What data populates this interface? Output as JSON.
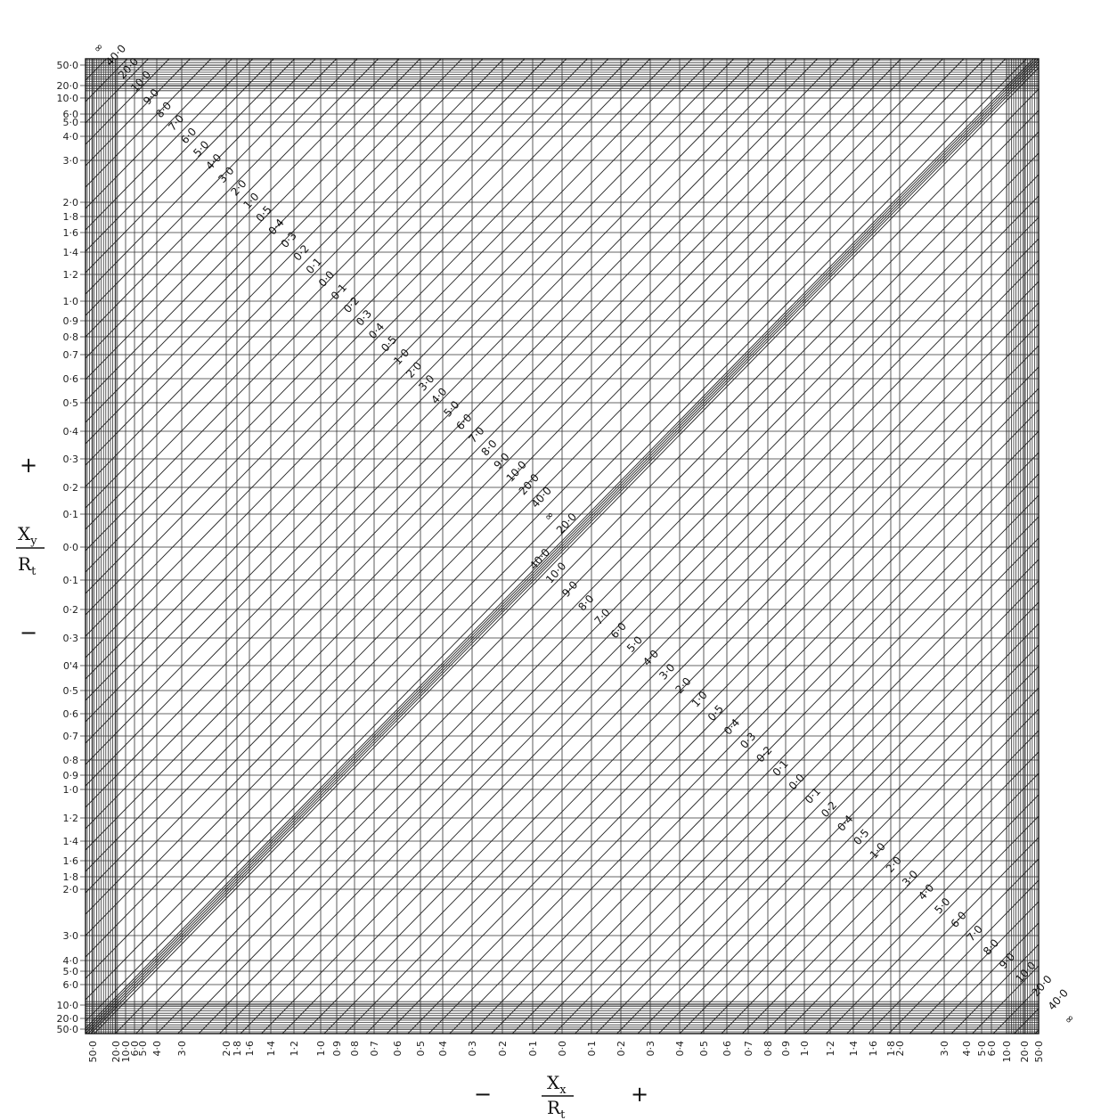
{
  "chart_data": {
    "type": "line",
    "title": "",
    "x_axis": {
      "label_symbol": "X",
      "label_subscript": "x",
      "label_denominator": "R",
      "label_denominator_subscript": "t",
      "minus_sign": "−",
      "plus_sign": "+",
      "ticks": [
        "50·0",
        "20·0",
        "10·0",
        "6·0",
        "5·0",
        "4·0",
        "3·0",
        "2·0",
        "1·8",
        "1·6",
        "1·4",
        "1·2",
        "1·0",
        "0·9",
        "0·8",
        "0·7",
        "0·6",
        "0·5",
        "0·4",
        "0·3",
        "0·2",
        "0·1",
        "0·0",
        "0·1",
        "0·2",
        "0·3",
        "0·4",
        "0·5",
        "0·6",
        "0·7",
        "0·8",
        "0·9",
        "1·0",
        "1·2",
        "1·4",
        "1·6",
        "1·8",
        "2·0",
        "3·0",
        "4·0",
        "5·0",
        "6·0",
        "10·0",
        "20·0",
        "50·0"
      ]
    },
    "y_axis": {
      "label_symbol": "X",
      "label_subscript": "y",
      "label_denominator": "R",
      "label_denominator_subscript": "t",
      "minus_sign": "−",
      "plus_sign": "+",
      "ticks": [
        "50·0",
        "20·0",
        "10·0",
        "6·0",
        "5·0",
        "4·0",
        "3·0",
        "2·0",
        "1·8",
        "1·6",
        "1·4",
        "1·2",
        "1·0",
        "0·9",
        "0·8",
        "0·7",
        "0·6",
        "0·5",
        "0'4",
        "0·3",
        "0·2",
        "0·1",
        "0·0",
        "0·1",
        "0·2",
        "0·3",
        "0·4",
        "0·5",
        "0·6",
        "0·7",
        "0·8",
        "0·9",
        "1·0",
        "1·2",
        "1·4",
        "1·6",
        "1·8",
        "2·0",
        "3·0",
        "4·0",
        "5·0",
        "6·0",
        "10·0",
        "20·0",
        "50·0"
      ]
    },
    "curve_labels_upper": [
      "∞",
      "40·0",
      "20·0",
      "10·0",
      "9·0",
      "8·0",
      "7·0",
      "6·0",
      "5·0",
      "4·0",
      "3·0",
      "2·0",
      "1·0",
      "0·5",
      "0·4",
      "0·3",
      "0·2",
      "0·1",
      "0·0",
      "0·1",
      "0·2",
      "0·3",
      "0·4",
      "0·5",
      "1·0",
      "2·0",
      "3·0",
      "4·0",
      "5·0",
      "6·0",
      "7·0",
      "8·0",
      "9·0",
      "10·0",
      "20·0",
      "40·0",
      "∞",
      "20·0"
    ],
    "curve_labels_lower": [
      "40·0",
      "10·0",
      "9·0",
      "8·0",
      "7·0",
      "6·0",
      "5·0",
      "4·0",
      "3·0",
      "2·0",
      "1·0",
      "0·5",
      "0·4",
      "0·3",
      "0·2",
      "0·1",
      "0·0",
      "0·1",
      "0·2",
      "0·4",
      "0·5",
      "1·0",
      "2·0",
      "3·0",
      "4·0",
      "5·0",
      "6·0",
      "7·0",
      "8·0",
      "9·0",
      "10·0",
      "20·0",
      "40·0",
      "∞"
    ],
    "grid": true,
    "scale": "nonlinear"
  }
}
